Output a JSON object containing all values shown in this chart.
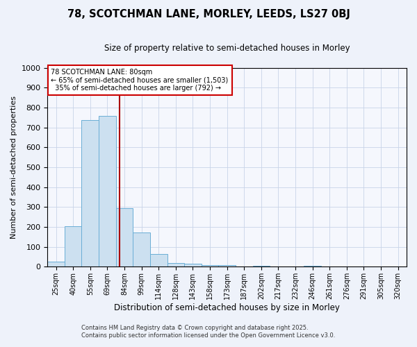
{
  "title1": "78, SCOTCHMAN LANE, MORLEY, LEEDS, LS27 0BJ",
  "title2": "Size of property relative to semi-detached houses in Morley",
  "xlabel": "Distribution of semi-detached houses by size in Morley",
  "ylabel": "Number of semi-detached properties",
  "categories": [
    "25sqm",
    "40sqm",
    "55sqm",
    "69sqm",
    "84sqm",
    "99sqm",
    "114sqm",
    "128sqm",
    "143sqm",
    "158sqm",
    "173sqm",
    "187sqm",
    "202sqm",
    "217sqm",
    "232sqm",
    "246sqm",
    "261sqm",
    "276sqm",
    "291sqm",
    "305sqm",
    "320sqm"
  ],
  "values": [
    27,
    203,
    738,
    757,
    294,
    173,
    65,
    18,
    15,
    8,
    10,
    0,
    5,
    0,
    0,
    5,
    0,
    0,
    0,
    0,
    0
  ],
  "bar_color": "#cce0f0",
  "bar_edge_color": "#6aaed6",
  "vline_color": "#aa0000",
  "annotation_text": "78 SCOTCHMAN LANE: 80sqm\n← 65% of semi-detached houses are smaller (1,503)\n  35% of semi-detached houses are larger (792) →",
  "annotation_box_color": "#ffffff",
  "annotation_box_edge": "#cc0000",
  "ylim": [
    0,
    1000
  ],
  "yticks": [
    0,
    100,
    200,
    300,
    400,
    500,
    600,
    700,
    800,
    900,
    1000
  ],
  "footnote1": "Contains HM Land Registry data © Crown copyright and database right 2025.",
  "footnote2": "Contains public sector information licensed under the Open Government Licence v3.0.",
  "bg_color": "#eef2fa",
  "plot_bg_color": "#f5f7fd",
  "grid_color": "#c8d4e8",
  "title1_fontsize": 10.5,
  "title2_fontsize": 8.5
}
